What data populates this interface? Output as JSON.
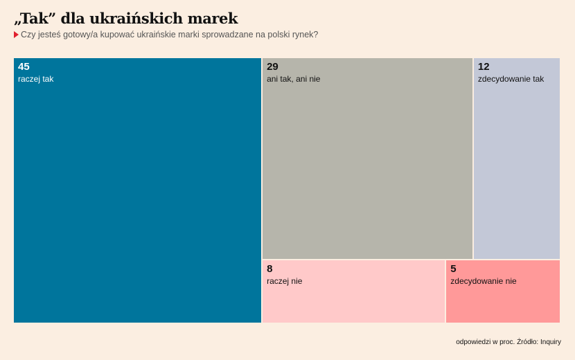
{
  "header": {
    "title": "„Tak” dla ukraińskich marek",
    "subtitle": "Czy jesteś gotowy/a kupować ukraińskie marki sprowadzane na polski rynek?"
  },
  "chart_data": {
    "type": "treemap",
    "unit": "proc.",
    "items": [
      {
        "label": "raczej tak",
        "value": 45,
        "color": "#00759c",
        "text_color": "#ffffff"
      },
      {
        "label": "ani tak, ani nie",
        "value": 29,
        "color": "#b6b5ab",
        "text_color": "#111111"
      },
      {
        "label": "zdecydowanie tak",
        "value": 12,
        "color": "#c3c8d7",
        "text_color": "#111111"
      },
      {
        "label": "raczej nie",
        "value": 8,
        "color": "#ffc9c9",
        "text_color": "#111111"
      },
      {
        "label": "zdecydowanie nie",
        "value": 5,
        "color": "#ff9999",
        "text_color": "#111111"
      }
    ]
  },
  "footnote": "odpowiedzi w proc. Źródło: Inquiry"
}
